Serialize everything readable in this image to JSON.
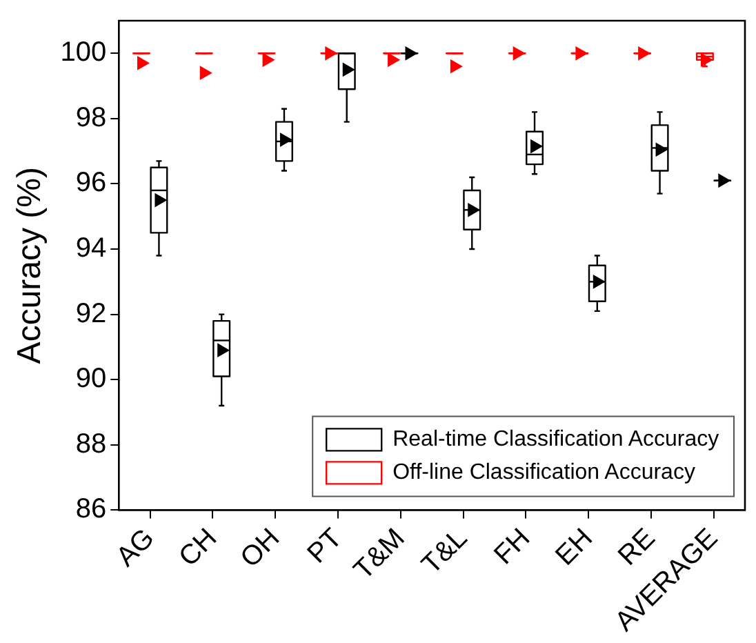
{
  "chart_data": {
    "type": "box",
    "ylabel": "Accuracy (%)",
    "categories": [
      "AG",
      "CH",
      "OH",
      "PT",
      "T&M",
      "T&L",
      "FH",
      "EH",
      "RE",
      "AVERAGE"
    ],
    "ylim": [
      86,
      101
    ],
    "yticks": [
      86,
      88,
      90,
      92,
      94,
      96,
      98,
      100
    ],
    "legend": "bottom right",
    "marker": "triangle",
    "grid": false,
    "series": [
      {
        "name": "Real-time Classification Accuracy",
        "color": "#000000",
        "boxes": [
          {
            "low": 93.8,
            "q1": 94.5,
            "median": 95.8,
            "q3": 96.5,
            "high": 96.7,
            "mean": 95.5
          },
          {
            "low": 89.2,
            "q1": 90.1,
            "median": 91.2,
            "q3": 91.8,
            "high": 92.0,
            "mean": 90.9
          },
          {
            "low": 96.4,
            "q1": 96.7,
            "median": 97.3,
            "q3": 97.9,
            "high": 98.3,
            "mean": 97.35
          },
          {
            "low": 97.9,
            "q1": 98.9,
            "median": 100,
            "q3": 100,
            "high": 100,
            "mean": 99.5
          },
          {
            "low": 100,
            "q1": 100,
            "median": 100,
            "q3": 100,
            "high": 100,
            "mean": 100
          },
          {
            "low": 94.0,
            "q1": 94.6,
            "median": 95.2,
            "q3": 95.8,
            "high": 96.2,
            "mean": 95.2
          },
          {
            "low": 96.3,
            "q1": 96.6,
            "median": 96.9,
            "q3": 97.6,
            "high": 98.2,
            "mean": 97.15
          },
          {
            "low": 92.1,
            "q1": 92.4,
            "median": 93.0,
            "q3": 93.5,
            "high": 93.8,
            "mean": 93.0
          },
          {
            "low": 95.7,
            "q1": 96.4,
            "median": 97.1,
            "q3": 97.8,
            "high": 98.2,
            "mean": 97.05
          },
          {
            "low": 96.1,
            "q1": 96.1,
            "median": 96.1,
            "q3": 96.1,
            "high": 96.1,
            "mean": 96.1
          }
        ]
      },
      {
        "name": "Off-line Classification Accuracy",
        "color": "#ff0000",
        "boxes": [
          {
            "low": 100,
            "q1": 100,
            "median": 100,
            "q3": 100,
            "high": 100,
            "mean": 99.7
          },
          {
            "low": 100,
            "q1": 100,
            "median": 100,
            "q3": 100,
            "high": 100,
            "mean": 99.4
          },
          {
            "low": 100,
            "q1": 100,
            "median": 100,
            "q3": 100,
            "high": 100,
            "mean": 99.8
          },
          {
            "low": 100,
            "q1": 100,
            "median": 100,
            "q3": 100,
            "high": 100,
            "mean": 100
          },
          {
            "low": 100,
            "q1": 100,
            "median": 100,
            "q3": 100,
            "high": 100,
            "mean": 99.8
          },
          {
            "low": 100,
            "q1": 100,
            "median": 100,
            "q3": 100,
            "high": 100,
            "mean": 99.6
          },
          {
            "low": 100,
            "q1": 100,
            "median": 100,
            "q3": 100,
            "high": 100,
            "mean": 100
          },
          {
            "low": 100,
            "q1": 100,
            "median": 100,
            "q3": 100,
            "high": 100,
            "mean": 100
          },
          {
            "low": 100,
            "q1": 100,
            "median": 100,
            "q3": 100,
            "high": 100,
            "mean": 100
          },
          {
            "low": 99.6,
            "q1": 99.8,
            "median": 99.9,
            "q3": 100,
            "high": 100,
            "mean": 99.8
          }
        ]
      }
    ]
  }
}
